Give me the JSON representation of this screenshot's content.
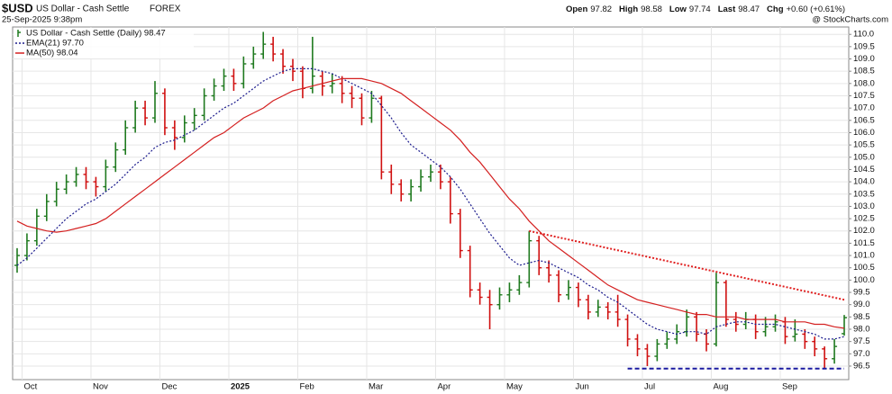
{
  "header": {
    "symbol": "$USD",
    "name": "US Dollar - Cash Settle",
    "exchange": "FOREX",
    "date": "25-Sep-2025 9:38pm",
    "source": "@ StockCharts.com",
    "quote": [
      {
        "label": "Open",
        "value": "97.82"
      },
      {
        "label": "High",
        "value": "98.58"
      },
      {
        "label": "Low",
        "value": "97.74"
      },
      {
        "label": "Last",
        "value": "98.47"
      },
      {
        "label": "Chg",
        "value": "+0.60 (+0.61%)"
      }
    ]
  },
  "chart_data": {
    "type": "ohlc",
    "categories": [
      null,
      "Oct",
      null,
      null,
      null,
      null,
      null,
      null,
      "Nov",
      null,
      null,
      null,
      null,
      null,
      null,
      "Dec",
      null,
      null,
      null,
      null,
      null,
      null,
      "2025",
      null,
      null,
      null,
      null,
      null,
      null,
      "Feb",
      null,
      null,
      null,
      null,
      null,
      null,
      "Mar",
      null,
      null,
      null,
      null,
      null,
      null,
      "Apr",
      null,
      null,
      null,
      null,
      null,
      null,
      "May",
      null,
      null,
      null,
      null,
      null,
      null,
      "Jun",
      null,
      null,
      null,
      null,
      null,
      null,
      "Jul",
      null,
      null,
      null,
      null,
      null,
      null,
      "Aug",
      null,
      null,
      null,
      null,
      null,
      null,
      "Sep",
      null,
      null,
      null,
      null,
      null,
      null
    ],
    "series": [
      {
        "name": "US Dollar - Cash Settle (Daily) 98.47",
        "up_color": "#1f7a1f",
        "down_color": "#d01010",
        "open": [
          100.6,
          101.0,
          101.6,
          102.6,
          103.2,
          103.7,
          104.0,
          104.3,
          104.0,
          103.8,
          104.6,
          105.3,
          106.2,
          107.0,
          106.6,
          107.6,
          106.2,
          105.8,
          106.4,
          106.7,
          107.5,
          107.9,
          108.3,
          108.0,
          108.8,
          109.2,
          109.6,
          109.2,
          108.7,
          108.5,
          107.8,
          108.3,
          107.9,
          108.0,
          107.6,
          107.4,
          106.6,
          107.4,
          104.4,
          103.9,
          103.5,
          103.8,
          104.2,
          104.4,
          104.0,
          102.7,
          101.2,
          99.6,
          99.3,
          99.0,
          99.4,
          99.6,
          99.9,
          101.6,
          100.5,
          100.2,
          99.4,
          99.7,
          99.2,
          98.7,
          98.9,
          98.7,
          98.4,
          97.6,
          97.2,
          96.9,
          97.4,
          97.6,
          97.9,
          98.5,
          97.8,
          97.4,
          99.9,
          98.4,
          98.2,
          98.4,
          97.9,
          98.1,
          98.3,
          97.7,
          97.8,
          97.5,
          97.2,
          96.8,
          97.82
        ],
        "high": [
          101.3,
          101.9,
          102.9,
          103.5,
          104.0,
          104.3,
          104.6,
          104.6,
          104.2,
          104.9,
          105.6,
          106.5,
          107.3,
          107.3,
          108.1,
          107.8,
          106.5,
          106.7,
          107.0,
          107.8,
          108.2,
          108.6,
          108.6,
          109.1,
          109.5,
          110.1,
          109.9,
          109.4,
          109.0,
          108.7,
          109.9,
          108.5,
          108.4,
          108.3,
          107.9,
          107.6,
          107.7,
          107.5,
          104.7,
          104.1,
          104.1,
          104.5,
          104.7,
          104.7,
          104.2,
          102.9,
          101.4,
          99.9,
          99.6,
          99.7,
          99.9,
          100.2,
          102.0,
          101.8,
          100.8,
          100.4,
          100.0,
          99.9,
          99.4,
          99.2,
          99.1,
          99.4,
          98.6,
          97.8,
          97.4,
          97.6,
          97.9,
          98.2,
          98.8,
          98.7,
          98.0,
          100.3,
          100.0,
          98.7,
          98.7,
          98.6,
          98.5,
          98.6,
          98.5,
          98.4,
          98.0,
          97.7,
          97.3,
          97.6,
          98.58
        ],
        "low": [
          100.3,
          100.8,
          101.4,
          102.4,
          103.0,
          103.5,
          103.8,
          103.7,
          103.4,
          103.6,
          104.4,
          105.1,
          106.0,
          106.3,
          106.4,
          105.9,
          105.3,
          105.6,
          106.1,
          106.5,
          107.3,
          107.7,
          107.7,
          107.8,
          108.6,
          109.0,
          108.9,
          108.4,
          108.1,
          107.4,
          107.6,
          107.5,
          107.6,
          107.2,
          107.0,
          106.3,
          106.4,
          104.1,
          103.5,
          103.2,
          103.2,
          103.6,
          104.0,
          103.7,
          102.3,
          100.9,
          99.3,
          99.0,
          98.0,
          98.8,
          99.1,
          99.4,
          99.7,
          100.2,
          99.9,
          99.1,
          99.2,
          98.9,
          98.4,
          98.5,
          98.4,
          98.1,
          97.3,
          96.9,
          96.5,
          96.7,
          97.2,
          97.4,
          97.7,
          97.5,
          97.1,
          97.3,
          98.1,
          97.9,
          98.0,
          97.6,
          97.7,
          97.9,
          97.4,
          97.5,
          97.2,
          96.9,
          96.4,
          96.6,
          97.74
        ],
        "close": [
          101.0,
          101.6,
          102.6,
          103.2,
          103.7,
          104.0,
          104.3,
          104.0,
          103.8,
          104.6,
          105.3,
          106.2,
          107.0,
          106.6,
          107.6,
          106.2,
          105.8,
          106.4,
          106.7,
          107.5,
          107.9,
          108.3,
          108.0,
          108.8,
          109.2,
          109.6,
          109.2,
          108.7,
          108.5,
          107.8,
          108.3,
          107.9,
          108.0,
          107.6,
          107.4,
          106.6,
          107.4,
          104.4,
          103.9,
          103.5,
          103.8,
          104.2,
          104.4,
          104.0,
          102.7,
          101.2,
          99.6,
          99.3,
          99.0,
          99.4,
          99.6,
          99.9,
          101.6,
          100.5,
          100.2,
          99.4,
          99.7,
          99.2,
          98.7,
          98.9,
          98.7,
          98.4,
          97.6,
          97.2,
          96.9,
          97.4,
          97.6,
          97.9,
          98.5,
          97.8,
          97.4,
          99.9,
          98.4,
          98.2,
          98.4,
          97.9,
          98.1,
          98.3,
          97.7,
          97.8,
          97.5,
          97.2,
          96.8,
          97.3,
          98.47
        ]
      },
      {
        "name": "EMA(21) 97.70",
        "type": "line",
        "style": "dotted",
        "color": "#1a1a8c",
        "values": [
          100.6,
          100.9,
          101.3,
          101.7,
          102.1,
          102.5,
          102.8,
          103.1,
          103.3,
          103.6,
          103.9,
          104.3,
          104.7,
          105.0,
          105.4,
          105.6,
          105.7,
          105.9,
          106.1,
          106.4,
          106.7,
          107.0,
          107.2,
          107.5,
          107.8,
          108.1,
          108.3,
          108.5,
          108.6,
          108.6,
          108.6,
          108.5,
          108.4,
          108.2,
          108.0,
          107.8,
          107.6,
          107.1,
          106.6,
          106.0,
          105.5,
          105.2,
          104.9,
          104.6,
          104.2,
          103.7,
          103.1,
          102.5,
          101.9,
          101.4,
          100.9,
          100.6,
          100.7,
          100.8,
          100.7,
          100.5,
          100.3,
          100.1,
          99.8,
          99.6,
          99.3,
          99.1,
          98.8,
          98.5,
          98.2,
          98.0,
          97.9,
          97.8,
          97.9,
          97.9,
          97.8,
          98.1,
          98.2,
          98.3,
          98.3,
          98.2,
          98.2,
          98.2,
          98.1,
          98.0,
          97.9,
          97.8,
          97.6,
          97.6,
          97.7
        ]
      },
      {
        "name": "MA(50) 98.04",
        "type": "line",
        "style": "solid",
        "color": "#d42020",
        "values": [
          102.4,
          102.2,
          102.1,
          102.0,
          101.95,
          102.0,
          102.1,
          102.2,
          102.3,
          102.5,
          102.8,
          103.1,
          103.4,
          103.7,
          104.0,
          104.3,
          104.6,
          104.9,
          105.2,
          105.5,
          105.8,
          106.0,
          106.3,
          106.6,
          106.8,
          107.0,
          107.3,
          107.5,
          107.7,
          107.8,
          107.9,
          108.0,
          108.1,
          108.2,
          108.2,
          108.2,
          108.1,
          108.0,
          107.8,
          107.6,
          107.3,
          107.0,
          106.7,
          106.4,
          106.1,
          105.7,
          105.2,
          104.8,
          104.3,
          103.8,
          103.3,
          102.9,
          102.4,
          102.0,
          101.6,
          101.3,
          101.0,
          100.7,
          100.4,
          100.1,
          99.8,
          99.6,
          99.4,
          99.2,
          99.1,
          99.0,
          98.9,
          98.8,
          98.7,
          98.6,
          98.6,
          98.5,
          98.5,
          98.5,
          98.4,
          98.4,
          98.4,
          98.4,
          98.3,
          98.3,
          98.3,
          98.2,
          98.2,
          98.1,
          98.04
        ]
      }
    ],
    "trendlines": [
      {
        "color": "#e02020",
        "style": "dotted",
        "start": 52,
        "end": 84,
        "values": [
          102.0,
          99.2
        ]
      },
      {
        "color": "#1a1aa0",
        "style": "dashed",
        "start": 62,
        "end": 84,
        "values": [
          96.4,
          96.4
        ]
      }
    ],
    "ylim": [
      95.95,
      110.3
    ],
    "yticks": [
      {
        "value": 96.5,
        "label": "96.5"
      },
      {
        "value": 97,
        "label": "97.0"
      },
      {
        "value": 97.5,
        "label": "97.5"
      },
      {
        "value": 98,
        "label": "98.0"
      },
      {
        "value": 98.5,
        "label": "98.5"
      },
      {
        "value": 99,
        "label": "99.0"
      },
      {
        "value": 99.5,
        "label": "99.5"
      },
      {
        "value": 100,
        "label": "100.0"
      },
      {
        "value": 100.5,
        "label": "100.5"
      },
      {
        "value": 101,
        "label": "101.0"
      },
      {
        "value": 101.5,
        "label": "101.5"
      },
      {
        "value": 102,
        "label": "102.0"
      },
      {
        "value": 102.5,
        "label": "102.5"
      },
      {
        "value": 103,
        "label": "103.0"
      },
      {
        "value": 103.5,
        "label": "103.5"
      },
      {
        "value": 104,
        "label": "104.0"
      },
      {
        "value": 104.5,
        "label": "104.5"
      },
      {
        "value": 105,
        "label": "105.0"
      },
      {
        "value": 105.5,
        "label": "105.5"
      },
      {
        "value": 106,
        "label": "106.0"
      },
      {
        "value": 106.5,
        "label": "106.5"
      },
      {
        "value": 107,
        "label": "107.0"
      },
      {
        "value": 107.5,
        "label": "107.5"
      },
      {
        "value": 108,
        "label": "108.0"
      },
      {
        "value": 108.5,
        "label": "108.5"
      },
      {
        "value": 109,
        "label": "109.0"
      },
      {
        "value": 109.5,
        "label": "109.5"
      },
      {
        "value": 110,
        "label": "110.0"
      }
    ],
    "grid": true
  }
}
